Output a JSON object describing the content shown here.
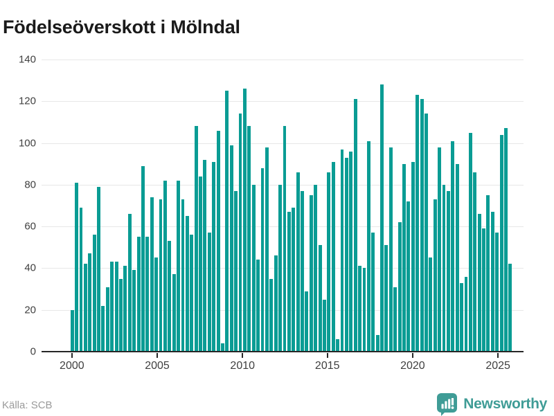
{
  "title": "Födelseöverskott i Mölndal",
  "source": "Källa: SCB",
  "branding": {
    "name": "Newsworthy",
    "logo_icon": "speech-bubble-bar-chart"
  },
  "colors": {
    "bar": "#0a9c94",
    "logo": "#3f9c96",
    "axis": "#262626",
    "gridline": "#e7e7e7",
    "title_text": "#1a1a1a",
    "tick_text": "#3f3f3f",
    "source_text": "#9a9a9a"
  },
  "chart_data": {
    "type": "bar",
    "title": "Födelseöverskott i Mölndal",
    "frequency": "quarterly",
    "start_period": "2000 Q1",
    "end_period": "2024 Q4",
    "xlabel": "",
    "ylabel": "",
    "ylim": [
      0,
      140
    ],
    "y_ticks": [
      0,
      20,
      40,
      60,
      80,
      100,
      120,
      140
    ],
    "x_tick_labels": [
      "2000",
      "2005",
      "2010",
      "2015",
      "2020",
      "2025"
    ],
    "grid": "horizontal",
    "legend": "none",
    "values": [
      20,
      81,
      69,
      42,
      47,
      56,
      79,
      22,
      31,
      43,
      43,
      35,
      41,
      66,
      39,
      55,
      89,
      55,
      74,
      45,
      73,
      82,
      53,
      37,
      82,
      73,
      65,
      56,
      108,
      84,
      92,
      57,
      91,
      106,
      4,
      125,
      99,
      77,
      114,
      126,
      108,
      80,
      44,
      88,
      98,
      35,
      46,
      80,
      108,
      67,
      69,
      86,
      77,
      29,
      75,
      80,
      51,
      25,
      86,
      91,
      6,
      97,
      93,
      96,
      121,
      41,
      40,
      101,
      57,
      8,
      128,
      51,
      98,
      31,
      62,
      90,
      72,
      91,
      123,
      121,
      114,
      45,
      73,
      98,
      80,
      77,
      101,
      90,
      33,
      36,
      105,
      86,
      66,
      59,
      75,
      67,
      57,
      104,
      107,
      42
    ]
  }
}
